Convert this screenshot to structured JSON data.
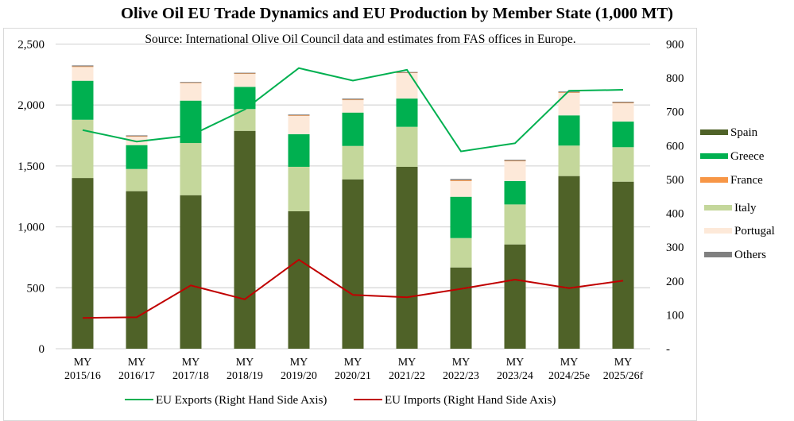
{
  "chart_data": {
    "type": "bar",
    "subtype": "stacked bar with dual-axis line overlay",
    "title": "Olive Oil EU Trade Dynamics and EU Production by Member State (1,000 MT)",
    "subtitle": "Source: International Olive Oil Council data and estimates from FAS offices in Europe.",
    "xlabel": "",
    "ylabel": "",
    "categories": [
      [
        "MY",
        "2015/16"
      ],
      [
        "MY",
        "2016/17"
      ],
      [
        "MY",
        "2017/18"
      ],
      [
        "MY",
        "2018/19"
      ],
      [
        "MY",
        "2019/20"
      ],
      [
        "MY",
        "2020/21"
      ],
      [
        "MY",
        "2021/22"
      ],
      [
        "MY",
        "2022/23"
      ],
      [
        "MY",
        "2023/24"
      ],
      [
        "MY",
        "2024/25e"
      ],
      [
        "MY",
        "2025/26f"
      ]
    ],
    "left_axis": {
      "range": [
        0,
        2500
      ],
      "ticks": [
        0,
        500,
        1000,
        1500,
        2000,
        2500
      ],
      "tick_labels": [
        "0",
        "500",
        "1,000",
        "1,500",
        "2,000",
        "2,500"
      ],
      "gridlines": true
    },
    "right_axis": {
      "range": [
        0,
        900
      ],
      "ticks": [
        0,
        100,
        200,
        300,
        400,
        500,
        600,
        700,
        800,
        900
      ],
      "tick_labels": [
        "-",
        "100",
        "200",
        "300",
        "400",
        "500",
        "600",
        "700",
        "800",
        "900"
      ]
    },
    "stack_series": [
      {
        "name": "Spain",
        "color": "#4f6228",
        "values": [
          1401,
          1293,
          1260,
          1788,
          1128,
          1390,
          1493,
          667,
          856,
          1417,
          1371
        ]
      },
      {
        "name": "Italy",
        "color": "#c4d79b",
        "values": [
          478,
          182,
          428,
          179,
          365,
          274,
          328,
          241,
          328,
          250,
          283
        ]
      },
      {
        "name": "Greece",
        "color": "#00b050",
        "values": [
          320,
          196,
          348,
          182,
          267,
          274,
          232,
          339,
          192,
          248,
          210
        ]
      },
      {
        "name": "Portugal",
        "color": "#fde9d9",
        "values": [
          113,
          69,
          143,
          106,
          150,
          102,
          209,
          129,
          162,
          184,
          150
        ]
      },
      {
        "name": "France",
        "color": "#f79646",
        "values": [
          5,
          4,
          4,
          4,
          5,
          5,
          3,
          7,
          5,
          5,
          5
        ]
      },
      {
        "name": "Others",
        "color": "#808080",
        "values": [
          8,
          7,
          6,
          6,
          7,
          8,
          6,
          10,
          8,
          7,
          8
        ]
      }
    ],
    "line_series": [
      {
        "name": "EU Exports (Right Hand Side Axis)",
        "color": "#00b050",
        "axis": "right",
        "values": [
          646,
          612,
          630,
          707,
          829,
          792,
          824,
          583,
          607,
          762,
          765
        ]
      },
      {
        "name": "EU Imports (Right Hand Side Axis)",
        "color": "#c00000",
        "axis": "right",
        "values": [
          91,
          93,
          187,
          146,
          263,
          159,
          152,
          177,
          204,
          179,
          201
        ]
      }
    ],
    "legend": {
      "right_placement": "right",
      "right_entries": [
        {
          "name": "Spain",
          "color": "#4f6228"
        },
        {
          "name": "Greece",
          "color": "#00b050"
        },
        {
          "name": "France",
          "color": "#f79646"
        },
        {
          "name": "Italy",
          "color": "#c4d79b"
        },
        {
          "name": "Portugal",
          "color": "#fde9d9"
        },
        {
          "name": "Others",
          "color": "#808080"
        }
      ],
      "bottom_placement": "bottom",
      "bottom_entries": [
        {
          "name": "EU Exports (Right Hand Side Axis)",
          "color": "#00b050"
        },
        {
          "name": "EU Imports (Right Hand Side Axis)",
          "color": "#c00000"
        }
      ]
    },
    "gridline_color": "#d9d9d9"
  }
}
